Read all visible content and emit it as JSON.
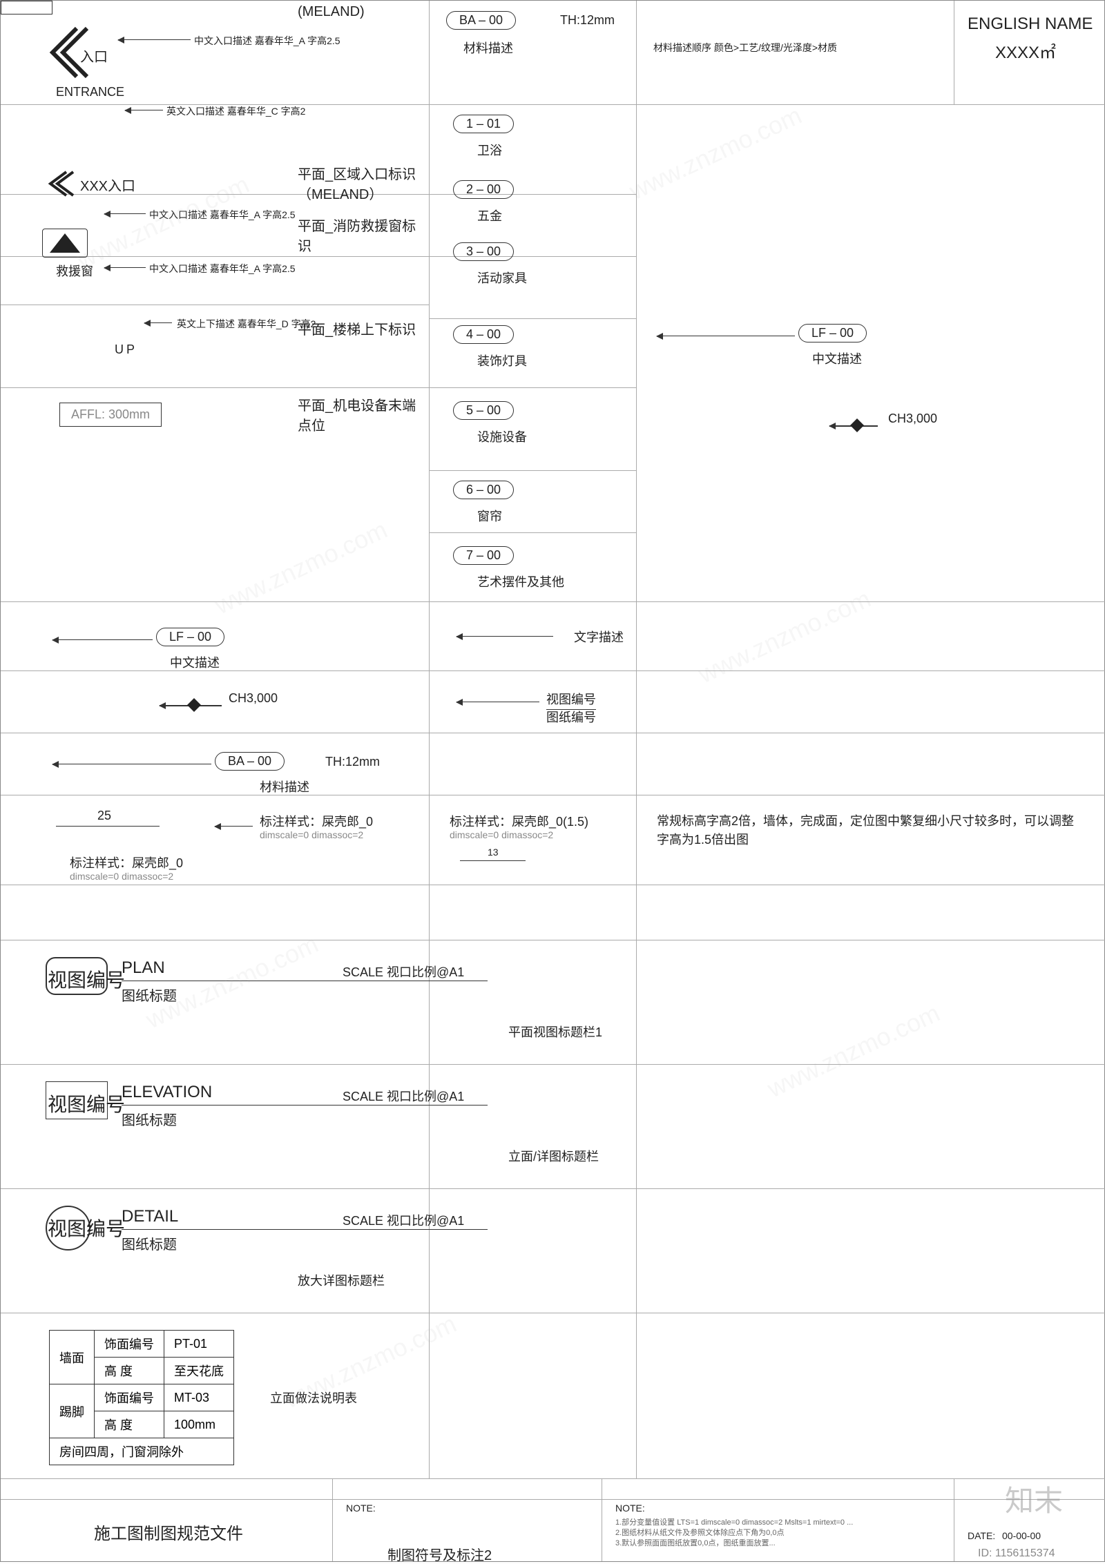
{
  "vlines": [
    620,
    920,
    1380,
    1595
  ],
  "hlines": [
    150,
    280,
    370,
    440,
    560,
    680,
    770,
    870,
    970,
    1060,
    1150,
    1280,
    1360,
    1540,
    1720,
    1900,
    2140,
    2170
  ],
  "header": {
    "top_note": "(MELAND)",
    "material": "材料描述",
    "ba_label": "BA  –  00",
    "th": "TH:12mm",
    "mat_order": "材料描述顺序 颜色>工艺/纹理/光泽度>材质",
    "en_name": "ENGLISH NAME",
    "area": "XXXX㎡"
  },
  "entrance": {
    "cn": "入口",
    "en": "ENTRANCE",
    "note1": "中文入口描述  嘉春年华_A 字高2.5",
    "note2": "英文入口描述  嘉春年华_C 字高2"
  },
  "row2": {
    "label": "XXX入口",
    "note": "中文入口描述  嘉春年华_A 字高2.5",
    "title": "平面_区域入口标识（MELAND）"
  },
  "row3": {
    "label": "救援窗",
    "note": "中文入口描述  嘉春年华_A 字高2.5",
    "title": "平面_消防救援窗标识"
  },
  "row4": {
    "up": "UP",
    "note": "英文上下描述  嘉春年华_D 字高2",
    "title": "平面_楼梯上下标识"
  },
  "row5": {
    "affl": "AFFL: 300mm",
    "title": "平面_机电设备末端点位"
  },
  "categories": [
    {
      "code": "1  –  01",
      "name": "卫浴"
    },
    {
      "code": "2  –  00",
      "name": "五金"
    },
    {
      "code": "3  –  00",
      "name": "活动家具"
    },
    {
      "code": "4  –  00",
      "name": "装饰灯具"
    },
    {
      "code": "5  –  00",
      "name": "设施设备"
    },
    {
      "code": "6  –  00",
      "name": "窗帘"
    },
    {
      "code": "7  –  00",
      "name": "艺术摆件及其他"
    }
  ],
  "row_lf1": {
    "code": "LF  –  00",
    "desc": "中文描述",
    "ch": "CH3,000"
  },
  "row_lf2": {
    "code": "LF  –  00",
    "desc": "中文描述",
    "ch": "CH3,000"
  },
  "text_desc": "文字描述",
  "view_num": {
    "l1": "视图编号",
    "l2": "图纸编号"
  },
  "row_ba": {
    "code": "BA  –  00",
    "th": "TH:12mm",
    "desc": "材料描述"
  },
  "dim_row": {
    "dim": "25",
    "style0": "标注样式：屎壳郎_0",
    "dimnote": "dimscale=0  dimassoc=2",
    "style15": "标注样式：屎壳郎_0(1.5)",
    "dim2": "13",
    "note": "常规标高字高2倍，墙体，完成面，定位图中繁复细小尺寸较多时，可以调整字高为1.5倍出图"
  },
  "title_blocks": [
    {
      "type": "PLAN",
      "sub": "图纸标题",
      "scale": "SCALE  视口比例@A1",
      "tag": "视图编号",
      "desc": "平面视图标题栏1"
    },
    {
      "type": "ELEVATION",
      "sub": "图纸标题",
      "scale": "SCALE  视口比例@A1",
      "tag": "视图编号",
      "desc": "立面/详图标题栏"
    },
    {
      "type": "DETAIL",
      "sub": "图纸标题",
      "scale": "SCALE  视口比例@A1",
      "tag": "视图编号",
      "desc": "放大详图标题栏"
    }
  ],
  "material_table": {
    "rows": [
      [
        "墙面",
        "饰面编号",
        "PT-01"
      ],
      [
        "",
        "高    度",
        "至天花底"
      ],
      [
        "踢脚",
        "饰面编号",
        "MT-03"
      ],
      [
        "",
        "高    度",
        "100mm"
      ]
    ],
    "footer": "房间四周，门窗洞除外",
    "desc": "立面做法说明表"
  },
  "footer": {
    "title": "施工图制图规范文件",
    "sub": "制图符号及标注2",
    "note": "NOTE:",
    "note1": "1.部分变量值设置 LTS=1 dimscale=0 dimassoc=2 Mslts=1 mirtext=0 ...",
    "note2": "2.图纸材料从纸文件及参照文体除应点下角为0,0点",
    "note3": "3.默认参照面面图纸放置0,0点，图纸重面放置...",
    "date_lbl": "DATE:",
    "date": "00-00-00",
    "id": "ID: 1156115374",
    "logo": "知末"
  }
}
